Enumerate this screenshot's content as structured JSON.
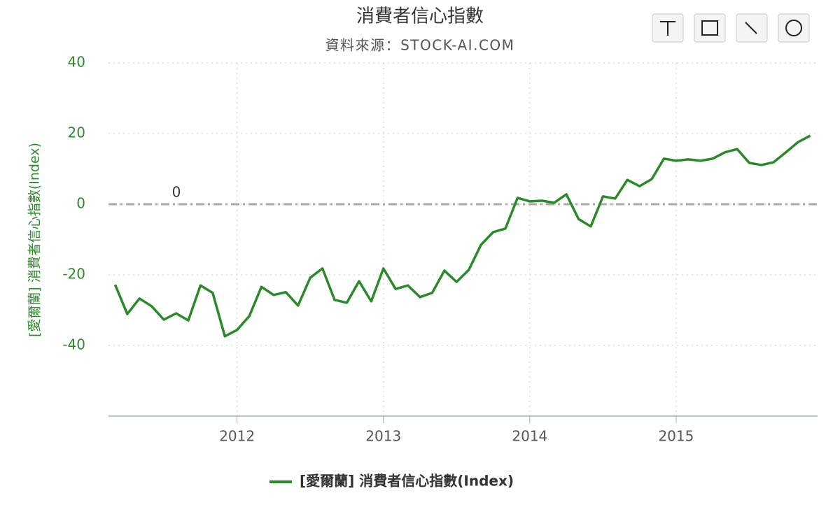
{
  "chart_data": {
    "type": "line",
    "title": "消費者信心指數",
    "subtitle": "資料來源：STOCK-AI.COM",
    "y_label": "[愛爾蘭] 消費者信心指數(Index)",
    "x": [
      "2011-03",
      "2011-04",
      "2011-05",
      "2011-06",
      "2011-07",
      "2011-08",
      "2011-09",
      "2011-10",
      "2011-11",
      "2011-12",
      "2012-01",
      "2012-02",
      "2012-03",
      "2012-04",
      "2012-05",
      "2012-06",
      "2012-07",
      "2012-08",
      "2012-09",
      "2012-10",
      "2012-11",
      "2012-12",
      "2013-01",
      "2013-02",
      "2013-03",
      "2013-04",
      "2013-05",
      "2013-06",
      "2013-07",
      "2013-08",
      "2013-09",
      "2013-10",
      "2013-11",
      "2013-12",
      "2014-01",
      "2014-02",
      "2014-03",
      "2014-04",
      "2014-05",
      "2014-06",
      "2014-07",
      "2014-08",
      "2014-09",
      "2014-10",
      "2014-11",
      "2014-12",
      "2015-01",
      "2015-02",
      "2015-03",
      "2015-04",
      "2015-05",
      "2015-06",
      "2015-07",
      "2015-08",
      "2015-09",
      "2015-10",
      "2015-11",
      "2015-12"
    ],
    "series": [
      {
        "name": "[愛爾蘭] 消費者信心指數(Index)",
        "color": "#2a8a2a",
        "values": [
          -22.8,
          -31.1,
          -26.7,
          -28.9,
          -32.7,
          -30.9,
          -32.9,
          -23.0,
          -25.1,
          -37.4,
          -35.6,
          -31.7,
          -23.4,
          -25.7,
          -24.9,
          -28.7,
          -20.8,
          -18.2,
          -27.1,
          -27.9,
          -21.8,
          -27.5,
          -18.2,
          -24.0,
          -23.0,
          -26.3,
          -25.1,
          -18.8,
          -22.0,
          -18.6,
          -11.5,
          -7.9,
          -6.9,
          1.8,
          0.8,
          1.0,
          0.4,
          2.8,
          -4.2,
          -6.3,
          2.2,
          1.6,
          6.9,
          5.1,
          7.1,
          12.9,
          12.3,
          12.7,
          12.3,
          12.9,
          14.7,
          15.6,
          11.7,
          11.1,
          11.9,
          14.7,
          17.6,
          19.4
        ]
      }
    ],
    "xlim": [
      "2011-02",
      "2016-01"
    ],
    "xticks": [
      2012,
      2013,
      2014,
      2015
    ],
    "ylim": [
      -60,
      40
    ],
    "yticks": [
      -40,
      -20,
      0,
      20,
      40
    ],
    "reference_line": 0,
    "grid": true
  }
}
